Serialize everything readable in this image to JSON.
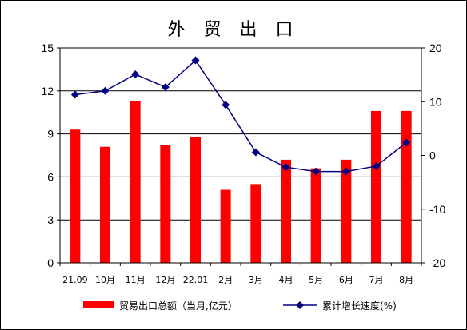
{
  "chart_data": {
    "type": "bar",
    "title": "外 贸 出 口",
    "categories": [
      "21.09",
      "10月",
      "11月",
      "12月",
      "22.01",
      "2月",
      "3月",
      "4月",
      "5月",
      "6月",
      "7月",
      "8月"
    ],
    "series": [
      {
        "name": "贸易出口总额（当月,亿元）",
        "type": "bar",
        "axis": "left",
        "color": "#ff0000",
        "values": [
          9.3,
          8.1,
          11.3,
          8.2,
          8.8,
          5.1,
          5.5,
          7.2,
          6.6,
          7.2,
          10.6,
          10.6
        ]
      },
      {
        "name": "累计增长速度(%)",
        "type": "line",
        "axis": "right",
        "color": "#000080",
        "values": [
          11.3,
          12.0,
          15.1,
          12.7,
          17.7,
          9.4,
          0.6,
          -2.2,
          -3.0,
          -3.0,
          -2.0,
          2.4
        ]
      }
    ],
    "y_left": {
      "lim": [
        0,
        15
      ],
      "ticks": [
        "0",
        "3",
        "6",
        "9",
        "12",
        "15"
      ]
    },
    "y_right": {
      "lim": [
        -20,
        20
      ],
      "ticks": [
        "-20",
        "-10",
        "0",
        "10",
        "20"
      ]
    },
    "grid": true,
    "legend_position": "bottom"
  }
}
